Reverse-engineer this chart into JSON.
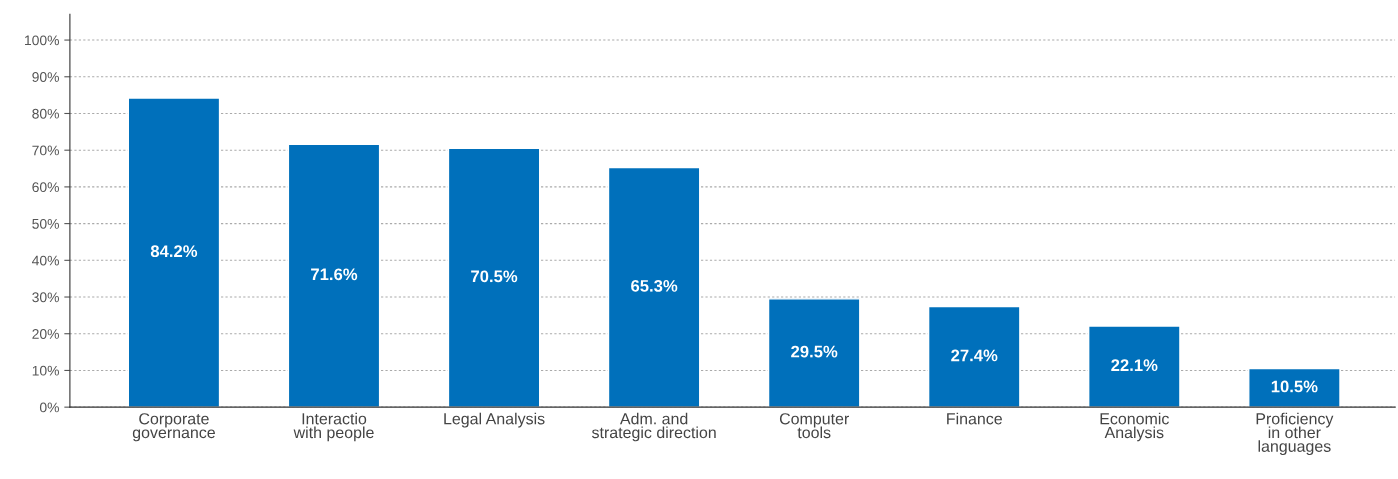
{
  "chart_data": {
    "type": "bar",
    "categories": [
      "Corporate\ngovernance",
      "Interactio\nwith people",
      "Legal Analysis",
      "Adm. and\nstrategic direction",
      "Computer\ntools",
      "Finance",
      "Economic\nAnalysis",
      "Proficiency\nin other\nlanguages"
    ],
    "values": [
      84.2,
      71.6,
      70.5,
      65.3,
      29.5,
      27.4,
      22.1,
      10.5
    ],
    "value_labels": [
      "84.2%",
      "71.6%",
      "70.5%",
      "65.3%",
      "29.5%",
      "27.4%",
      "22.1%",
      "10.5%"
    ],
    "color": "#0070bb",
    "ylim": [
      0,
      107
    ],
    "yticks": [
      {
        "value": 0,
        "label": "0%"
      },
      {
        "value": 10,
        "label": "10%"
      },
      {
        "value": 20,
        "label": "20%"
      },
      {
        "value": 30,
        "label": "30%"
      },
      {
        "value": 40,
        "label": "40%"
      },
      {
        "value": 50,
        "label": "50%"
      },
      {
        "value": 60,
        "label": "60%"
      },
      {
        "value": 70,
        "label": "70%"
      },
      {
        "value": 80,
        "label": "80%"
      },
      {
        "value": 90,
        "label": "90%"
      },
      {
        "value": 100,
        "label": "100%"
      }
    ],
    "grid": "y"
  }
}
